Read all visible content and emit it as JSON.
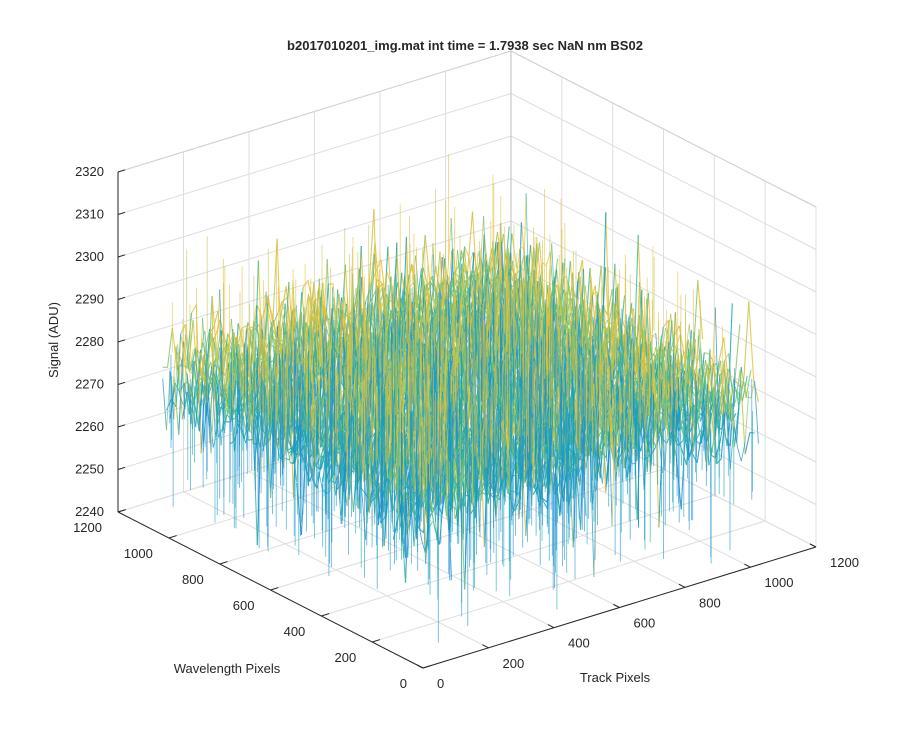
{
  "chart_data": {
    "type": "surface3d",
    "title": "b2017010201_img.mat int time = 1.7938 sec  NaN nm BS02",
    "xlabel": "Track Pixels",
    "ylabel": "Wavelength Pixels",
    "zlabel": "Signal (ADU)",
    "xlim": [
      0,
      1200
    ],
    "ylim": [
      0,
      1200
    ],
    "zlim": [
      2240,
      2320
    ],
    "x_ticks": [
      "0",
      "200",
      "400",
      "600",
      "800",
      "1000",
      "1200"
    ],
    "y_ticks": [
      "0",
      "200",
      "400",
      "600",
      "800",
      "1000",
      "1200"
    ],
    "z_ticks": [
      "2240",
      "2250",
      "2260",
      "2270",
      "2280",
      "2290",
      "2300",
      "2310",
      "2320"
    ],
    "surface_extent": {
      "x": [
        0,
        1024
      ],
      "y": [
        0,
        1024
      ]
    },
    "surface_mean": 2278,
    "surface_noise_range": [
      2245,
      2305
    ],
    "grid": true,
    "colormap": [
      "#1b8fd0",
      "#17a5b8",
      "#3dbb9a",
      "#8ac66a",
      "#c9c34b",
      "#e7c23a"
    ]
  }
}
